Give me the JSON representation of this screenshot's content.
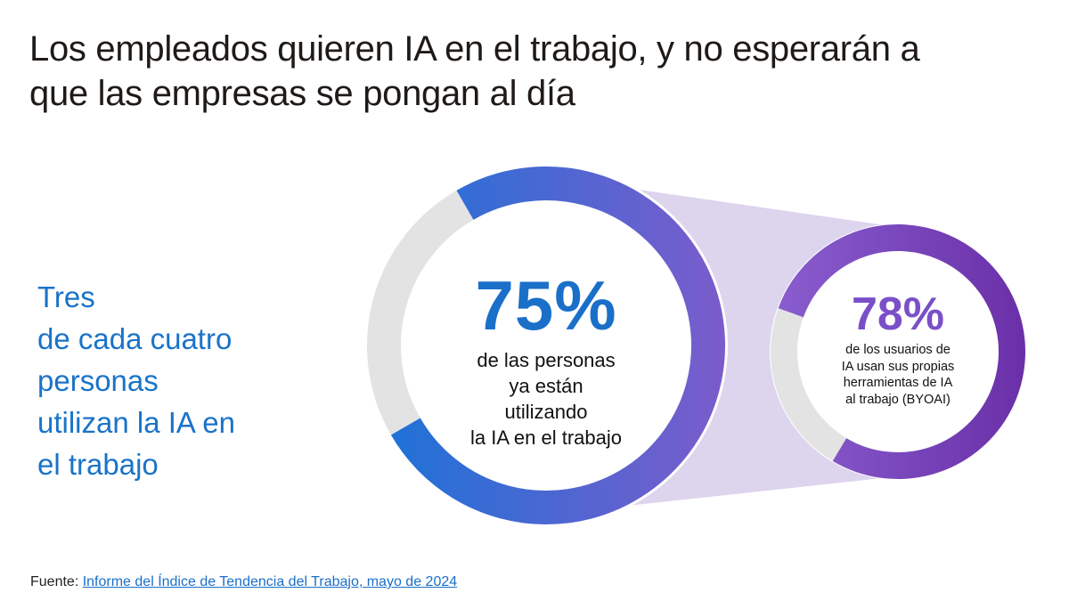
{
  "title": {
    "line1": "Los empleados quieren IA en el trabajo, y no esperarán a",
    "line2": "que las empresas se pongan al día"
  },
  "side_text": {
    "line1": "Tres",
    "line2": "de cada cuatro",
    "line3": "personas",
    "line4": "utilizan la IA en",
    "line5": "el trabajo"
  },
  "colors": {
    "blue": "#1a73c8",
    "purple": "#7a4fc8",
    "track": "#e3e3e3",
    "connector": "#ddd4ee"
  },
  "chart_data": [
    {
      "type": "pie",
      "title": "",
      "percent_label": "75%",
      "value": 75,
      "remainder": 25,
      "description": [
        "de las personas",
        "ya están",
        "utilizando",
        "la IA en el trabajo"
      ]
    },
    {
      "type": "pie",
      "title": "",
      "percent_label": "78%",
      "value": 78,
      "remainder": 22,
      "description": [
        "de los usuarios de",
        "IA usan sus propias",
        "herramientas de IA",
        "al trabajo (BYOAI)"
      ]
    }
  ],
  "source": {
    "prefix": "Fuente: ",
    "link_text": "Informe del Índice de Tendencia del Trabajo, mayo de 2024"
  }
}
